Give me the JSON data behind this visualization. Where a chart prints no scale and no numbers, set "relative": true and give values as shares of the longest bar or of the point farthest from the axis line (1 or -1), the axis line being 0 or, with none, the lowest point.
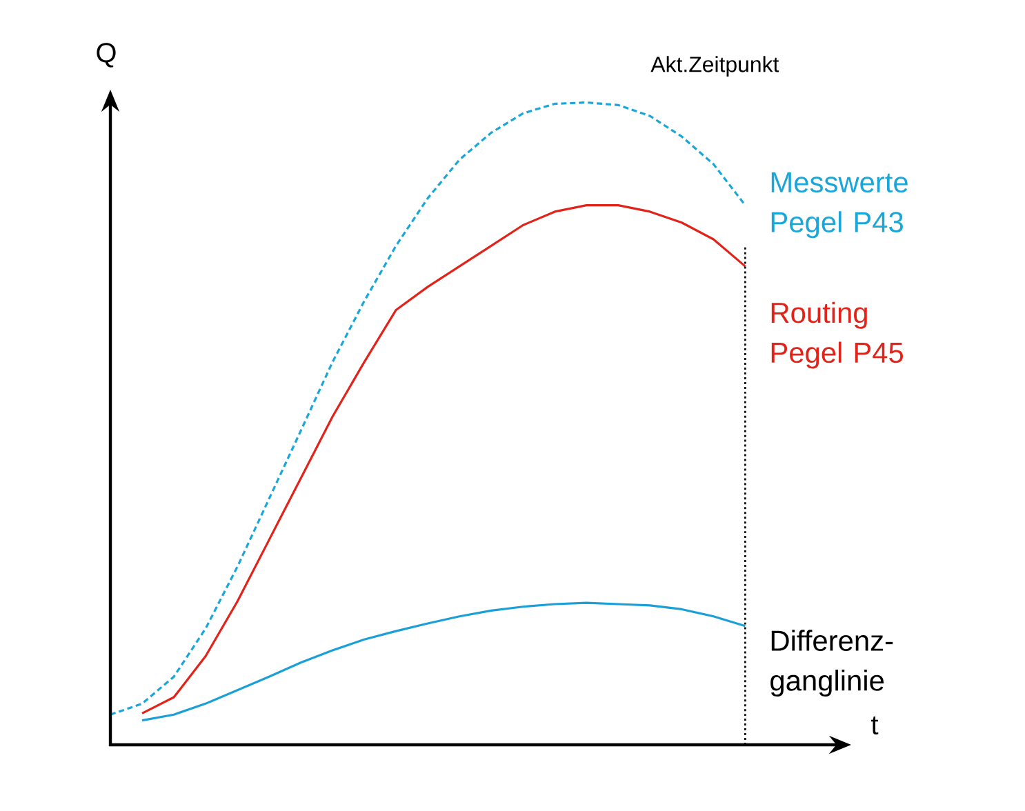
{
  "chart_data": {
    "type": "line",
    "relative": true,
    "xlabel": "t",
    "ylabel": "Q",
    "marker": "none",
    "categories": [
      null,
      null,
      null,
      null,
      null,
      null,
      null,
      null,
      null,
      null,
      null,
      null,
      null,
      null,
      null,
      null,
      null,
      null,
      null,
      null,
      null
    ],
    "series": [
      {
        "name": "Messwerte Pegel P43",
        "color": "#1AA6D9",
        "line_style": "dashed",
        "values": [
          0.047,
          0.064,
          0.106,
          0.181,
          0.277,
          0.383,
          0.489,
          0.596,
          0.691,
          0.777,
          0.851,
          0.911,
          0.953,
          0.983,
          0.998,
          1,
          0.996,
          0.979,
          0.947,
          0.904,
          0.84
        ]
      },
      {
        "name": "Routing Pegel P45",
        "color": "#E2231A",
        "values": [
          null,
          0.049,
          0.074,
          0.138,
          0.223,
          0.319,
          0.415,
          0.511,
          0.596,
          0.677,
          0.713,
          0.745,
          0.777,
          0.809,
          0.83,
          0.84,
          0.84,
          0.83,
          0.813,
          0.787,
          0.745
        ]
      },
      {
        "name": "Differenz-ganglinie",
        "color": "#1AA0D6",
        "values": [
          null,
          0.038,
          0.047,
          0.064,
          0.085,
          0.106,
          0.128,
          0.147,
          0.164,
          0.177,
          0.189,
          0.2,
          0.209,
          0.215,
          0.219,
          0.221,
          0.219,
          0.217,
          0.211,
          0.2,
          0.185
        ]
      }
    ],
    "annotations": [
      "Akt.Zeitpunkt"
    ]
  }
}
